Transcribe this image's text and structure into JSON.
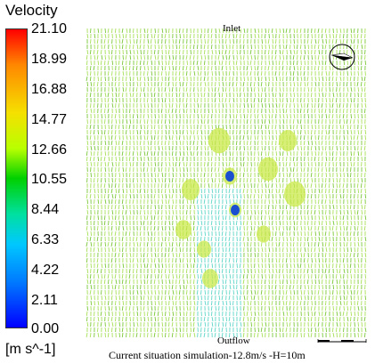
{
  "legend": {
    "title": "Velocity",
    "unit": "[m s^-1]",
    "ticks": [
      "21.10",
      "18.99",
      "16.88",
      "14.77",
      "12.66",
      "10.55",
      "8.44",
      "6.33",
      "4.22",
      "2.11",
      "0.00"
    ]
  },
  "labels": {
    "inlet": "Inlet",
    "outflow": "Outflow",
    "caption": "Current situation simulation-12.8m/s -H=10m"
  },
  "colors": {
    "field": "#a8e05a",
    "field_dark": "#7cc83a",
    "wake": "#5fd6c8",
    "deep": "#1a4fd0"
  },
  "icons": {
    "compass": "north-arrow-icon",
    "scale": "scale-bar-icon"
  }
}
